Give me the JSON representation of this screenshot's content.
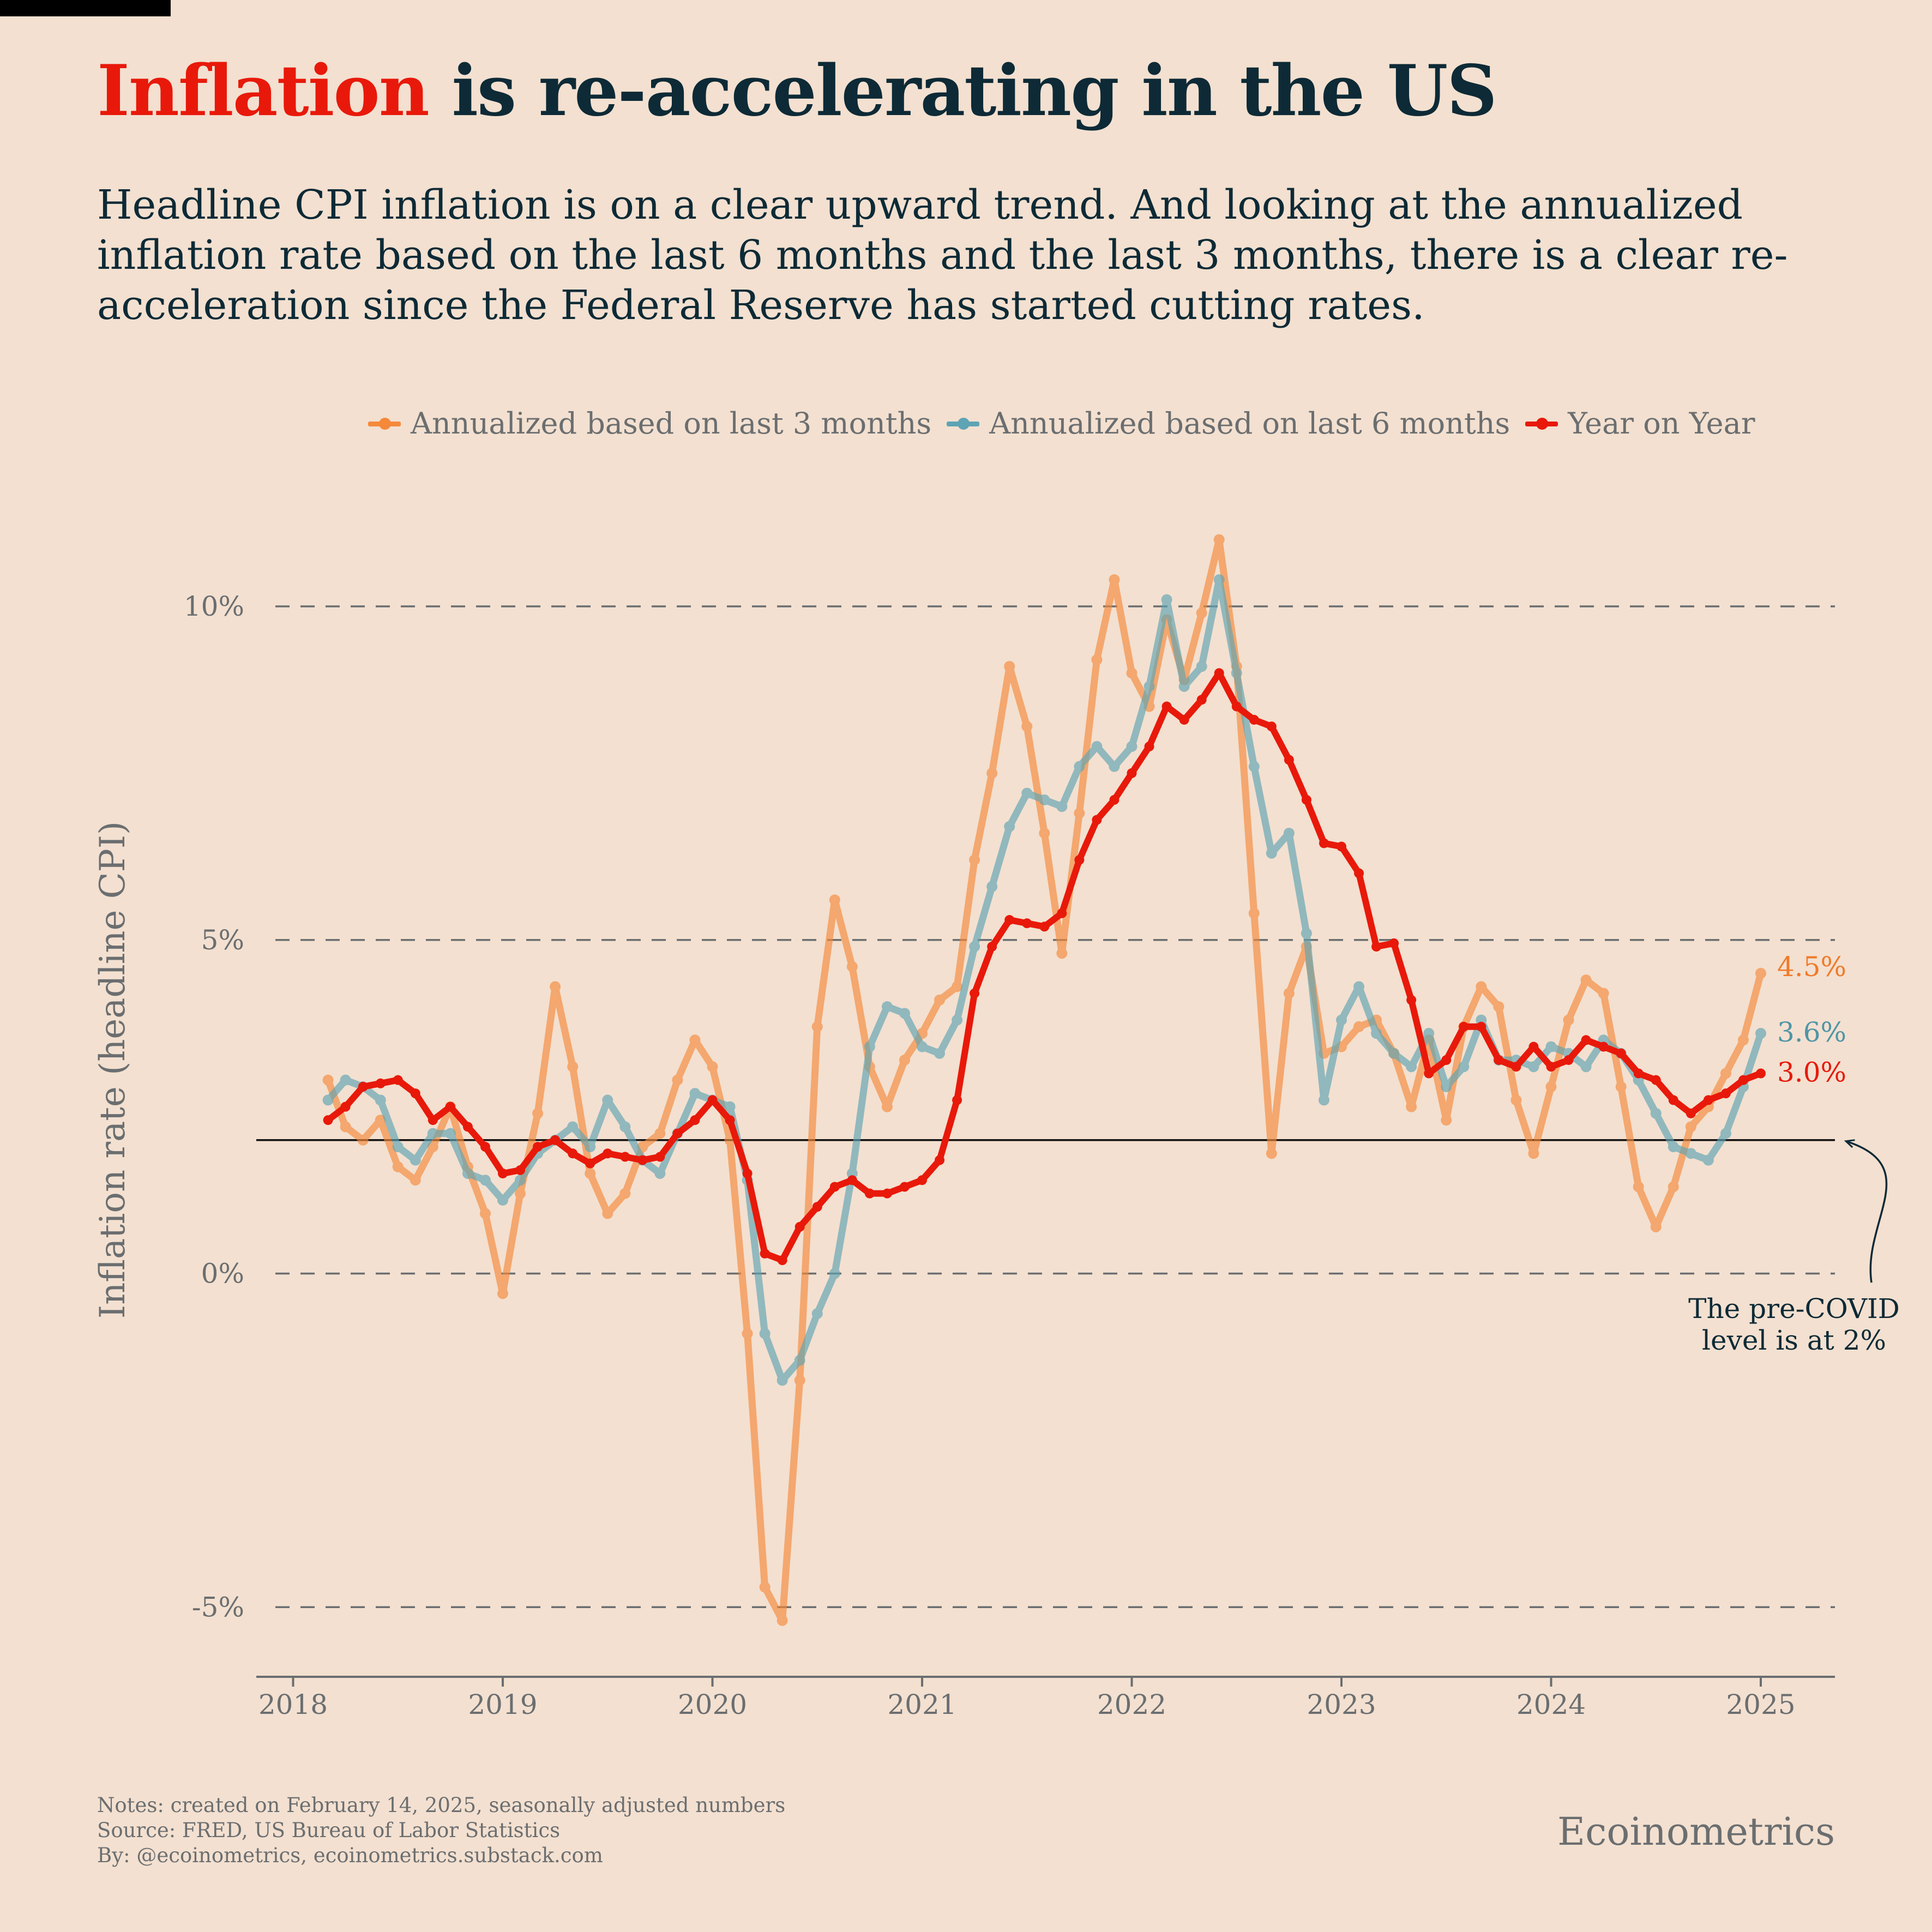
{
  "title": {
    "highlight": "Inflation",
    "rest": " is re-accelerating in the US",
    "highlight_color": "#e8190a"
  },
  "subtitle": "Headline CPI inflation is on a clear upward trend. And looking at the annualized inflation rate based on the last 6 months and the last 3 months, there is a clear re-acceleration since the Federal Reserve has started cutting rates.",
  "legend": [
    {
      "label": "Annualized based on last 3 months",
      "color": "#f5893a"
    },
    {
      "label": "Annualized based on last 6 months",
      "color": "#5ea4b4"
    },
    {
      "label": "Year on Year",
      "color": "#e8190a"
    }
  ],
  "chart_data": {
    "type": "line",
    "ylabel": "Inflation rate (headline CPI)",
    "xlabel": "",
    "ylim": [
      -6,
      11
    ],
    "yticks": [
      -5,
      0,
      5,
      10
    ],
    "ytick_labels": [
      "-5%",
      "0%",
      "5%",
      "10%"
    ],
    "xticks": [
      2018,
      2019,
      2020,
      2021,
      2022,
      2023,
      2024,
      2025
    ],
    "xtick_labels": [
      "2018",
      "2019",
      "2020",
      "2021",
      "2022",
      "2023",
      "2024",
      "2025"
    ],
    "grid": "horizontal dashed",
    "legend_position": "top",
    "x_start": "2018-03",
    "x_end": "2025-01",
    "reference_line": {
      "y": 2,
      "annotation": "The pre-COVID\nlevel is at 2%"
    },
    "series": [
      {
        "name": "Annualized based on last 3 months",
        "color": "#f5893a",
        "end_label": "4.5%",
        "values": [
          2.9,
          2.2,
          2.0,
          2.3,
          1.6,
          1.4,
          1.9,
          2.5,
          1.6,
          0.9,
          -0.3,
          1.2,
          2.4,
          4.3,
          3.1,
          1.5,
          0.9,
          1.2,
          1.9,
          2.1,
          2.9,
          3.5,
          3.1,
          2.0,
          -0.9,
          -4.7,
          -5.2,
          -1.6,
          3.7,
          5.6,
          4.6,
          3.1,
          2.5,
          3.2,
          3.6,
          4.1,
          4.3,
          6.2,
          7.5,
          9.1,
          8.2,
          6.6,
          4.8,
          6.9,
          9.2,
          10.4,
          9.0,
          8.5,
          9.8,
          8.9,
          9.9,
          11.0,
          9.1,
          5.4,
          1.8,
          4.2,
          4.9,
          3.3,
          3.4,
          3.7,
          3.8,
          3.3,
          2.5,
          3.5,
          2.3,
          3.7,
          4.3,
          4.0,
          2.6,
          1.8,
          2.8,
          3.8,
          4.4,
          4.2,
          2.8,
          1.3,
          0.7,
          1.3,
          2.2,
          2.5,
          3.0,
          3.5,
          4.5
        ]
      },
      {
        "name": "Annualized based on last 6 months",
        "color": "#5ea4b4",
        "end_label": "3.6%",
        "values": [
          2.6,
          2.9,
          2.8,
          2.6,
          1.9,
          1.7,
          2.1,
          2.1,
          1.5,
          1.4,
          1.1,
          1.4,
          1.8,
          2.0,
          2.2,
          1.9,
          2.6,
          2.2,
          1.7,
          1.5,
          2.1,
          2.7,
          2.6,
          2.5,
          1.4,
          -0.9,
          -1.6,
          -1.3,
          -0.6,
          0.0,
          1.5,
          3.4,
          4.0,
          3.9,
          3.4,
          3.3,
          3.8,
          4.9,
          5.8,
          6.7,
          7.2,
          7.1,
          7.0,
          7.6,
          7.9,
          7.6,
          7.9,
          8.8,
          10.1,
          8.8,
          9.1,
          10.4,
          9.0,
          7.6,
          6.3,
          6.6,
          5.1,
          2.6,
          3.8,
          4.3,
          3.6,
          3.3,
          3.1,
          3.6,
          2.8,
          3.1,
          3.8,
          3.2,
          3.2,
          3.1,
          3.4,
          3.3,
          3.1,
          3.5,
          3.3,
          2.9,
          2.4,
          1.9,
          1.8,
          1.7,
          2.1,
          2.8,
          3.6
        ]
      },
      {
        "name": "Year on Year",
        "color": "#e8190a",
        "end_label": "3.0%",
        "values": [
          2.3,
          2.5,
          2.8,
          2.85,
          2.9,
          2.7,
          2.3,
          2.5,
          2.2,
          1.9,
          1.5,
          1.55,
          1.9,
          2.0,
          1.8,
          1.65,
          1.8,
          1.75,
          1.7,
          1.75,
          2.1,
          2.3,
          2.6,
          2.3,
          1.5,
          0.3,
          0.2,
          0.7,
          1.0,
          1.3,
          1.4,
          1.2,
          1.2,
          1.3,
          1.4,
          1.7,
          2.6,
          4.2,
          4.9,
          5.3,
          5.25,
          5.2,
          5.4,
          6.2,
          6.8,
          7.1,
          7.5,
          7.9,
          8.5,
          8.3,
          8.6,
          9.0,
          8.5,
          8.3,
          8.2,
          7.7,
          7.1,
          6.45,
          6.4,
          6.0,
          4.9,
          4.95,
          4.1,
          3.0,
          3.2,
          3.7,
          3.7,
          3.2,
          3.1,
          3.4,
          3.1,
          3.2,
          3.5,
          3.4,
          3.3,
          3.0,
          2.9,
          2.6,
          2.4,
          2.6,
          2.7,
          2.9,
          3.0
        ]
      }
    ]
  },
  "footer": {
    "notes": "Notes: created on February 14, 2025, seasonally adjusted numbers",
    "source": "Source: FRED, US Bureau of Labor Statistics",
    "by": "By: @ecoinometrics, ecoinometrics.substack.com"
  },
  "brand": "Ecoinometrics"
}
